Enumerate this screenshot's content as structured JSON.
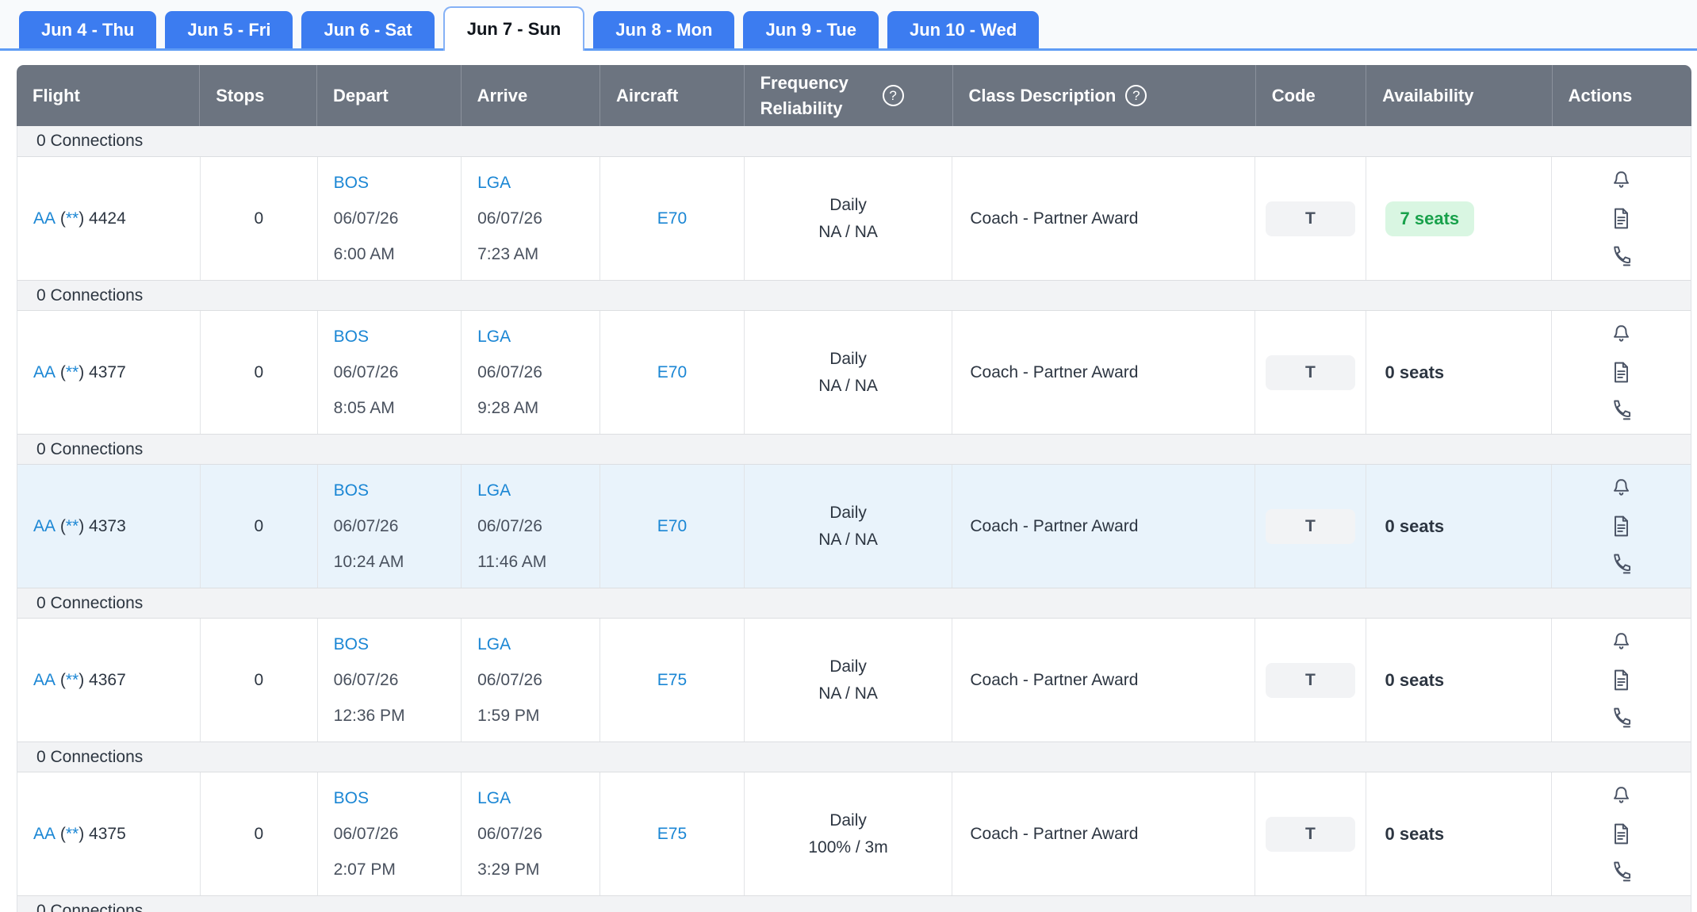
{
  "tabs": [
    {
      "label": "Jun 4 - Thu",
      "active": false
    },
    {
      "label": "Jun 5 - Fri",
      "active": false
    },
    {
      "label": "Jun 6 - Sat",
      "active": false
    },
    {
      "label": "Jun 7 - Sun",
      "active": true
    },
    {
      "label": "Jun 8 - Mon",
      "active": false
    },
    {
      "label": "Jun 9 - Tue",
      "active": false
    },
    {
      "label": "Jun 10 - Wed",
      "active": false
    }
  ],
  "table": {
    "columns": [
      {
        "label": "Flight",
        "help": false
      },
      {
        "label": "Stops",
        "help": false
      },
      {
        "label": "Depart",
        "help": false
      },
      {
        "label": "Arrive",
        "help": false
      },
      {
        "label": "Aircraft",
        "help": false
      },
      {
        "label": "Frequency Reliability",
        "help": true
      },
      {
        "label": "Class Description",
        "help": true
      },
      {
        "label": "Code",
        "help": false
      },
      {
        "label": "Availability",
        "help": false
      },
      {
        "label": "Actions",
        "help": false
      }
    ],
    "help_icon_glyph": "?",
    "action_icons": [
      "bell-icon",
      "document-icon",
      "phone-icon"
    ],
    "groups": [
      {
        "connections_label": "0 Connections",
        "highlighted": false,
        "flight": {
          "airline": "AA",
          "cs_open": " (",
          "cs_stars": "**",
          "cs_close": ") ",
          "number": "4424"
        },
        "stops": "0",
        "depart": {
          "airport": "BOS",
          "date": "06/07/26",
          "time": "6:00 AM"
        },
        "arrive": {
          "airport": "LGA",
          "date": "06/07/26",
          "time": "7:23 AM"
        },
        "aircraft": "E70",
        "frequency_line1": "Daily",
        "frequency_line2": "NA / NA",
        "class_description": "Coach - Partner Award",
        "code": "T",
        "availability": {
          "label": "7 seats",
          "status": "available"
        }
      },
      {
        "connections_label": "0 Connections",
        "highlighted": false,
        "flight": {
          "airline": "AA",
          "cs_open": " (",
          "cs_stars": "**",
          "cs_close": ") ",
          "number": "4377"
        },
        "stops": "0",
        "depart": {
          "airport": "BOS",
          "date": "06/07/26",
          "time": "8:05 AM"
        },
        "arrive": {
          "airport": "LGA",
          "date": "06/07/26",
          "time": "9:28 AM"
        },
        "aircraft": "E70",
        "frequency_line1": "Daily",
        "frequency_line2": "NA / NA",
        "class_description": "Coach - Partner Award",
        "code": "T",
        "availability": {
          "label": "0 seats",
          "status": "none"
        }
      },
      {
        "connections_label": "0 Connections",
        "highlighted": true,
        "flight": {
          "airline": "AA",
          "cs_open": " (",
          "cs_stars": "**",
          "cs_close": ") ",
          "number": "4373"
        },
        "stops": "0",
        "depart": {
          "airport": "BOS",
          "date": "06/07/26",
          "time": "10:24 AM"
        },
        "arrive": {
          "airport": "LGA",
          "date": "06/07/26",
          "time": "11:46 AM"
        },
        "aircraft": "E70",
        "frequency_line1": "Daily",
        "frequency_line2": "NA / NA",
        "class_description": "Coach - Partner Award",
        "code": "T",
        "availability": {
          "label": "0 seats",
          "status": "none"
        }
      },
      {
        "connections_label": "0 Connections",
        "highlighted": false,
        "flight": {
          "airline": "AA",
          "cs_open": " (",
          "cs_stars": "**",
          "cs_close": ") ",
          "number": "4367"
        },
        "stops": "0",
        "depart": {
          "airport": "BOS",
          "date": "06/07/26",
          "time": "12:36 PM"
        },
        "arrive": {
          "airport": "LGA",
          "date": "06/07/26",
          "time": "1:59 PM"
        },
        "aircraft": "E75",
        "frequency_line1": "Daily",
        "frequency_line2": "NA / NA",
        "class_description": "Coach - Partner Award",
        "code": "T",
        "availability": {
          "label": "0 seats",
          "status": "none"
        }
      },
      {
        "connections_label": "0 Connections",
        "highlighted": false,
        "flight": {
          "airline": "AA",
          "cs_open": " (",
          "cs_stars": "**",
          "cs_close": ") ",
          "number": "4375"
        },
        "stops": "0",
        "depart": {
          "airport": "BOS",
          "date": "06/07/26",
          "time": "2:07 PM"
        },
        "arrive": {
          "airport": "LGA",
          "date": "06/07/26",
          "time": "3:29 PM"
        },
        "aircraft": "E75",
        "frequency_line1": "Daily",
        "frequency_line2": "100% / 3m",
        "class_description": "Coach - Partner Award",
        "code": "T",
        "availability": {
          "label": "0 seats",
          "status": "none"
        }
      }
    ],
    "trailing_connections_label": "0 Connections"
  },
  "colors": {
    "tab_blue": "#3c7cf0",
    "tab_underline": "#5f9cf5",
    "header_gray": "#6c7480",
    "link_blue": "#1a86d4",
    "text_dark": "#2c3541",
    "row_highlight": "#e9f3fb",
    "band_gray": "#f2f3f5",
    "seats_green_text": "#18a14b",
    "seats_green_bg": "#d9f6e2",
    "code_badge_bg": "#f2f3f5",
    "icon_slate": "#4a5365"
  }
}
